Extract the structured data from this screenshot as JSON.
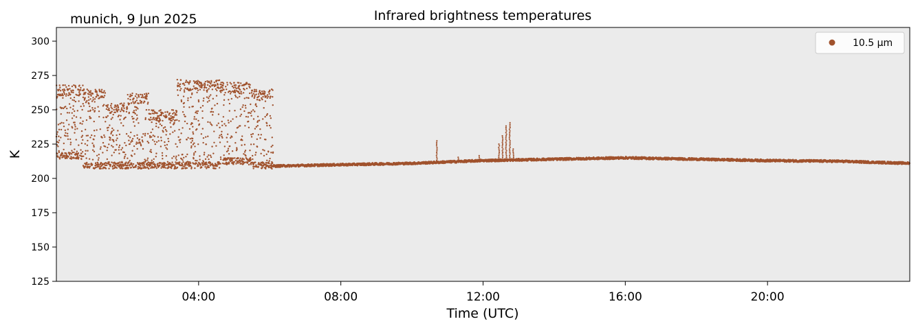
{
  "chart_data": {
    "type": "scatter",
    "title": "Infrared brightness temperatures",
    "location_label": "munich, 9 Jun 2025",
    "xlabel": "Time (UTC)",
    "ylabel": "K",
    "xlim_hours": [
      0,
      24
    ],
    "ylim": [
      125,
      310
    ],
    "x_ticks": [
      "04:00",
      "08:00",
      "12:00",
      "16:00",
      "20:00"
    ],
    "x_tick_hours": [
      4,
      8,
      12,
      16,
      20
    ],
    "y_ticks": [
      125,
      150,
      175,
      200,
      225,
      250,
      275,
      300
    ],
    "grid": false,
    "legend_position": "top-right",
    "background_color": "#ebebeb",
    "series": [
      {
        "name": "10.5 µm",
        "color": "#a0522d",
        "cloudy_segments": [
          {
            "start_hour": 0.0,
            "end_hour": 0.75,
            "min": 214,
            "max": 268
          },
          {
            "start_hour": 0.75,
            "end_hour": 1.4,
            "min": 207,
            "max": 265
          },
          {
            "start_hour": 1.4,
            "end_hour": 2.0,
            "min": 207,
            "max": 255
          },
          {
            "start_hour": 2.0,
            "end_hour": 2.6,
            "min": 207,
            "max": 262
          },
          {
            "start_hour": 2.6,
            "end_hour": 3.4,
            "min": 207,
            "max": 250
          },
          {
            "start_hour": 3.4,
            "end_hour": 4.6,
            "min": 207,
            "max": 272
          },
          {
            "start_hour": 4.6,
            "end_hour": 5.5,
            "min": 210,
            "max": 270
          },
          {
            "start_hour": 5.5,
            "end_hour": 6.1,
            "min": 207,
            "max": 265
          }
        ],
        "baseline": [
          {
            "hour": 6.1,
            "value": 209
          },
          {
            "hour": 8.0,
            "value": 210
          },
          {
            "hour": 10.0,
            "value": 211
          },
          {
            "hour": 12.0,
            "value": 213
          },
          {
            "hour": 14.0,
            "value": 214
          },
          {
            "hour": 16.0,
            "value": 215
          },
          {
            "hour": 18.0,
            "value": 214
          },
          {
            "hour": 20.0,
            "value": 213
          },
          {
            "hour": 22.0,
            "value": 212.5
          },
          {
            "hour": 24.0,
            "value": 211
          }
        ],
        "spikes": [
          {
            "hour": 10.7,
            "value": 228
          },
          {
            "hour": 11.3,
            "value": 216
          },
          {
            "hour": 11.9,
            "value": 217
          },
          {
            "hour": 12.45,
            "value": 226
          },
          {
            "hour": 12.55,
            "value": 232
          },
          {
            "hour": 12.65,
            "value": 239
          },
          {
            "hour": 12.75,
            "value": 241
          },
          {
            "hour": 12.85,
            "value": 222
          }
        ]
      }
    ]
  }
}
